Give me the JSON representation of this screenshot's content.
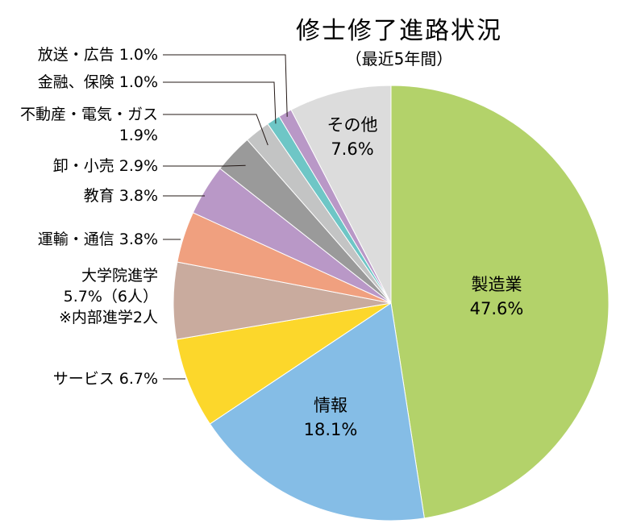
{
  "chart_data": {
    "type": "pie",
    "title": "修士修了進路状況",
    "subtitle": "（最近5年間）",
    "slices": [
      {
        "name": "製造業",
        "value": 47.6,
        "value_label": "47.6%",
        "color": "#b3d26a",
        "label_mode": "inside",
        "label_lines": [
          "製造業",
          "47.6%"
        ]
      },
      {
        "name": "情報",
        "value": 18.1,
        "value_label": "18.1%",
        "color": "#85bde6",
        "label_mode": "inside",
        "label_lines": [
          "情報",
          "18.1%"
        ]
      },
      {
        "name": "サービス",
        "value": 6.7,
        "value_label": "6.7%",
        "color": "#fcd72b",
        "label_mode": "outside",
        "label_lines": [
          "サービス 6.7%"
        ]
      },
      {
        "name": "大学院進学",
        "value": 5.7,
        "value_label": "5.7%（6人）",
        "color": "#c9ab9e",
        "label_mode": "outside",
        "label_lines": [
          "大学院進学",
          "5.7%（6人）",
          "※内部進学2人"
        ]
      },
      {
        "name": "運輸・通信",
        "value": 3.8,
        "value_label": "3.8%",
        "color": "#f0a07f",
        "label_mode": "outside",
        "label_lines": [
          "運輸・通信 3.8%"
        ]
      },
      {
        "name": "教育",
        "value": 3.8,
        "value_label": "3.8%",
        "color": "#b998c7",
        "label_mode": "outside",
        "label_lines": [
          "教育 3.8%"
        ]
      },
      {
        "name": "卸・小売",
        "value": 2.9,
        "value_label": "2.9%",
        "color": "#9a9a9a",
        "label_mode": "outside",
        "label_lines": [
          "卸・小売 2.9%"
        ]
      },
      {
        "name": "不動産・電気・ガス",
        "value": 1.9,
        "value_label": "1.9%",
        "color": "#c3c4c4",
        "label_mode": "outside",
        "label_lines": [
          "不動産・電気・ガス",
          "1.9%"
        ]
      },
      {
        "name": "金融、保険",
        "value": 1.0,
        "value_label": "1.0%",
        "color": "#6ec6c6",
        "label_mode": "outside",
        "label_lines": [
          "金融、保険 1.0%"
        ]
      },
      {
        "name": "放送・広告",
        "value": 1.0,
        "value_label": "1.0%",
        "color": "#b998c7",
        "label_mode": "outside",
        "label_lines": [
          "放送・広告 1.0%"
        ]
      },
      {
        "name": "その他",
        "value": 7.6,
        "value_label": "7.6%",
        "color": "#dcdcdc",
        "label_mode": "inside",
        "label_lines": [
          "その他",
          "7.6%"
        ]
      }
    ],
    "start": "12 o'clock",
    "direction": "clockwise",
    "legend": "none"
  }
}
